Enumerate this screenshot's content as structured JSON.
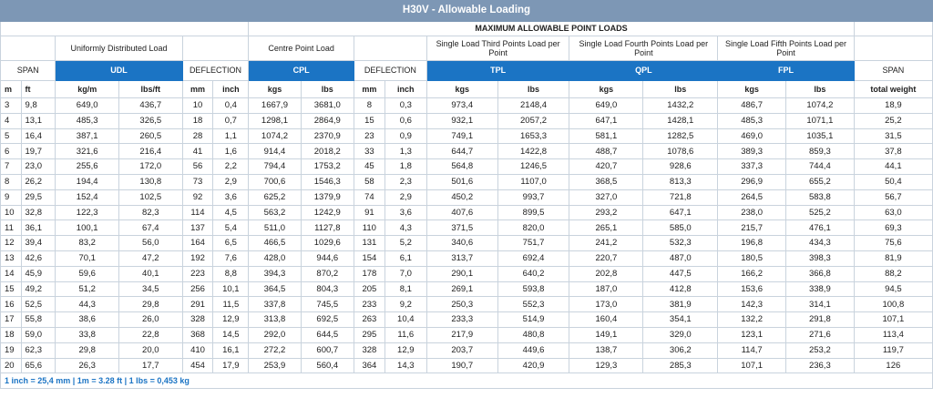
{
  "title": "H30V - Allowable Loading",
  "max_header": "MAXIMUM ALLOWABLE POINT LOADS",
  "descriptions": {
    "udl": "Uniformly Distributed Load",
    "cpl": "Centre Point Load",
    "tpl": "Single Load Third Points Load per Point",
    "qpl": "Single Load Fourth Points Load per Point",
    "fpl": "Single Load Fifth Points Load per Point"
  },
  "codes": {
    "span": "SPAN",
    "udl": "UDL",
    "deflection1": "DEFLECTION",
    "cpl": "CPL",
    "deflection2": "DEFLECTION",
    "tpl": "TPL",
    "qpl": "QPL",
    "fpl": "FPL",
    "span_right": "SPAN"
  },
  "units": [
    "m",
    "ft",
    "kg/m",
    "lbs/ft",
    "mm",
    "inch",
    "kgs",
    "lbs",
    "mm",
    "inch",
    "kgs",
    "lbs",
    "kgs",
    "lbs",
    "kgs",
    "lbs",
    "total weight"
  ],
  "rows": [
    [
      "3",
      "9,8",
      "649,0",
      "436,7",
      "10",
      "0,4",
      "1667,9",
      "3681,0",
      "8",
      "0,3",
      "973,4",
      "2148,4",
      "649,0",
      "1432,2",
      "486,7",
      "1074,2",
      "18,9"
    ],
    [
      "4",
      "13,1",
      "485,3",
      "326,5",
      "18",
      "0,7",
      "1298,1",
      "2864,9",
      "15",
      "0,6",
      "932,1",
      "2057,2",
      "647,1",
      "1428,1",
      "485,3",
      "1071,1",
      "25,2"
    ],
    [
      "5",
      "16,4",
      "387,1",
      "260,5",
      "28",
      "1,1",
      "1074,2",
      "2370,9",
      "23",
      "0,9",
      "749,1",
      "1653,3",
      "581,1",
      "1282,5",
      "469,0",
      "1035,1",
      "31,5"
    ],
    [
      "6",
      "19,7",
      "321,6",
      "216,4",
      "41",
      "1,6",
      "914,4",
      "2018,2",
      "33",
      "1,3",
      "644,7",
      "1422,8",
      "488,7",
      "1078,6",
      "389,3",
      "859,3",
      "37,8"
    ],
    [
      "7",
      "23,0",
      "255,6",
      "172,0",
      "56",
      "2,2",
      "794,4",
      "1753,2",
      "45",
      "1,8",
      "564,8",
      "1246,5",
      "420,7",
      "928,6",
      "337,3",
      "744,4",
      "44,1"
    ],
    [
      "8",
      "26,2",
      "194,4",
      "130,8",
      "73",
      "2,9",
      "700,6",
      "1546,3",
      "58",
      "2,3",
      "501,6",
      "1107,0",
      "368,5",
      "813,3",
      "296,9",
      "655,2",
      "50,4"
    ],
    [
      "9",
      "29,5",
      "152,4",
      "102,5",
      "92",
      "3,6",
      "625,2",
      "1379,9",
      "74",
      "2,9",
      "450,2",
      "993,7",
      "327,0",
      "721,8",
      "264,5",
      "583,8",
      "56,7"
    ],
    [
      "10",
      "32,8",
      "122,3",
      "82,3",
      "114",
      "4,5",
      "563,2",
      "1242,9",
      "91",
      "3,6",
      "407,6",
      "899,5",
      "293,2",
      "647,1",
      "238,0",
      "525,2",
      "63,0"
    ],
    [
      "11",
      "36,1",
      "100,1",
      "67,4",
      "137",
      "5,4",
      "511,0",
      "1127,8",
      "110",
      "4,3",
      "371,5",
      "820,0",
      "265,1",
      "585,0",
      "215,7",
      "476,1",
      "69,3"
    ],
    [
      "12",
      "39,4",
      "83,2",
      "56,0",
      "164",
      "6,5",
      "466,5",
      "1029,6",
      "131",
      "5,2",
      "340,6",
      "751,7",
      "241,2",
      "532,3",
      "196,8",
      "434,3",
      "75,6"
    ],
    [
      "13",
      "42,6",
      "70,1",
      "47,2",
      "192",
      "7,6",
      "428,0",
      "944,6",
      "154",
      "6,1",
      "313,7",
      "692,4",
      "220,7",
      "487,0",
      "180,5",
      "398,3",
      "81,9"
    ],
    [
      "14",
      "45,9",
      "59,6",
      "40,1",
      "223",
      "8,8",
      "394,3",
      "870,2",
      "178",
      "7,0",
      "290,1",
      "640,2",
      "202,8",
      "447,5",
      "166,2",
      "366,8",
      "88,2"
    ],
    [
      "15",
      "49,2",
      "51,2",
      "34,5",
      "256",
      "10,1",
      "364,5",
      "804,3",
      "205",
      "8,1",
      "269,1",
      "593,8",
      "187,0",
      "412,8",
      "153,6",
      "338,9",
      "94,5"
    ],
    [
      "16",
      "52,5",
      "44,3",
      "29,8",
      "291",
      "11,5",
      "337,8",
      "745,5",
      "233",
      "9,2",
      "250,3",
      "552,3",
      "173,0",
      "381,9",
      "142,3",
      "314,1",
      "100,8"
    ],
    [
      "17",
      "55,8",
      "38,6",
      "26,0",
      "328",
      "12,9",
      "313,8",
      "692,5",
      "263",
      "10,4",
      "233,3",
      "514,9",
      "160,4",
      "354,1",
      "132,2",
      "291,8",
      "107,1"
    ],
    [
      "18",
      "59,0",
      "33,8",
      "22,8",
      "368",
      "14,5",
      "292,0",
      "644,5",
      "295",
      "11,6",
      "217,9",
      "480,8",
      "149,1",
      "329,0",
      "123,1",
      "271,6",
      "113,4"
    ],
    [
      "19",
      "62,3",
      "29,8",
      "20,0",
      "410",
      "16,1",
      "272,2",
      "600,7",
      "328",
      "12,9",
      "203,7",
      "449,6",
      "138,7",
      "306,2",
      "114,7",
      "253,2",
      "119,7"
    ],
    [
      "20",
      "65,6",
      "26,3",
      "17,7",
      "454",
      "17,9",
      "253,9",
      "560,4",
      "364",
      "14,3",
      "190,7",
      "420,9",
      "129,3",
      "285,3",
      "107,1",
      "236,3",
      "126"
    ]
  ],
  "footer": "1 inch = 25,4 mm | 1m = 3.28 ft | 1 lbs = 0,453 kg",
  "colors": {
    "title_bg": "#7d97b5",
    "code_bg": "#1b74c4",
    "footer_text": "#1b74c4"
  }
}
